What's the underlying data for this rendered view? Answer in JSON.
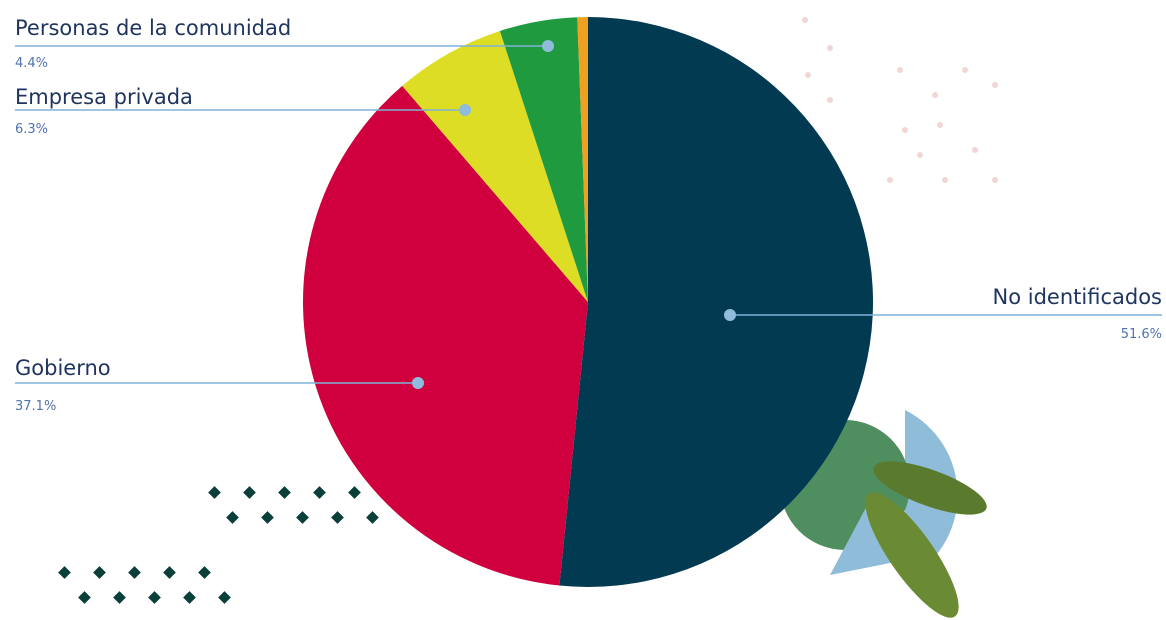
{
  "chart_data": {
    "type": "pie",
    "categories": [
      "No identificados",
      "Gobierno",
      "Empresa privada",
      "Personas de la comunidad",
      null
    ],
    "values": [
      51.6,
      37.1,
      6.3,
      4.4,
      0.6
    ],
    "value_labels": [
      "51.6%",
      "37.1%",
      "6.3%",
      "4.4%",
      null
    ],
    "colors": [
      "#023a52",
      "#cf003d",
      "#dedd25",
      "#1f9a3f",
      "#f0a020"
    ]
  }
}
